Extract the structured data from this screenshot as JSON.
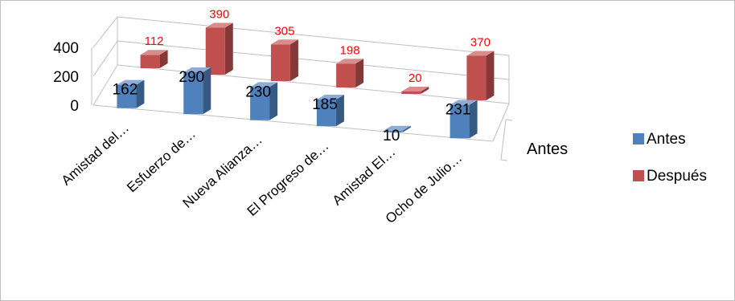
{
  "chart_data": {
    "type": "bar",
    "title": "",
    "xlabel": "",
    "ylabel": "",
    "ylim": [
      0,
      400
    ],
    "yticks": [
      "400",
      "200",
      "0"
    ],
    "depth_axis_label": "Antes",
    "categories": [
      "Amistad del…",
      "Esfuerzo de…",
      "Nueva Alianza…",
      "El Progreso de…",
      "Amistad El…",
      "Ocho de Julio…"
    ],
    "series": [
      {
        "name": "Antes",
        "values": [
          162,
          290,
          230,
          185,
          10,
          231
        ],
        "labels": [
          "162",
          "290",
          "230",
          "185",
          "10",
          "231"
        ],
        "color": "#4f81bd"
      },
      {
        "name": "Después",
        "values": [
          112,
          390,
          305,
          198,
          20,
          370
        ],
        "labels": [
          "112",
          "390",
          "305",
          "198",
          "20",
          "370"
        ],
        "color": "#c0504d"
      }
    ],
    "legend_position": "right",
    "grid": true,
    "colors": {
      "data_label_red": "#ff0000"
    }
  }
}
